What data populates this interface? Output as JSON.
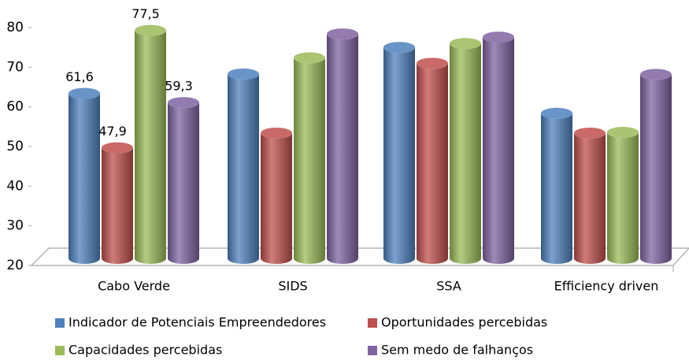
{
  "chart_data": {
    "type": "bar",
    "categories": [
      "Cabo Verde",
      "SIDS",
      "SSA",
      "Efficiency driven"
    ],
    "series": [
      {
        "name": "Indicador de Potenciais Empreendedores",
        "color": "#4f81bd",
        "values": [
          61.6,
          66.5,
          73.2,
          56.6
        ],
        "value_labels": [
          "61,6",
          null,
          null,
          null
        ]
      },
      {
        "name": "Oportunidades percebidas",
        "color": "#c0504d",
        "values": [
          47.9,
          51.6,
          69.2,
          51.6
        ],
        "value_labels": [
          "47,9",
          null,
          null,
          null
        ]
      },
      {
        "name": "Capacidades percebidas",
        "color": "#9bbb59",
        "values": [
          77.5,
          70.6,
          74.2,
          51.8
        ],
        "value_labels": [
          "77,5",
          null,
          null,
          null
        ]
      },
      {
        "name": "Sem medo de falhanços",
        "color": "#8064a2",
        "values": [
          59.3,
          76.6,
          75.8,
          66.4
        ],
        "value_labels": [
          "59,3",
          null,
          null,
          null
        ]
      }
    ],
    "ylim": [
      20,
      80
    ],
    "yticks": [
      20,
      30,
      40,
      50,
      60,
      70,
      80
    ],
    "legend": "bottom"
  }
}
